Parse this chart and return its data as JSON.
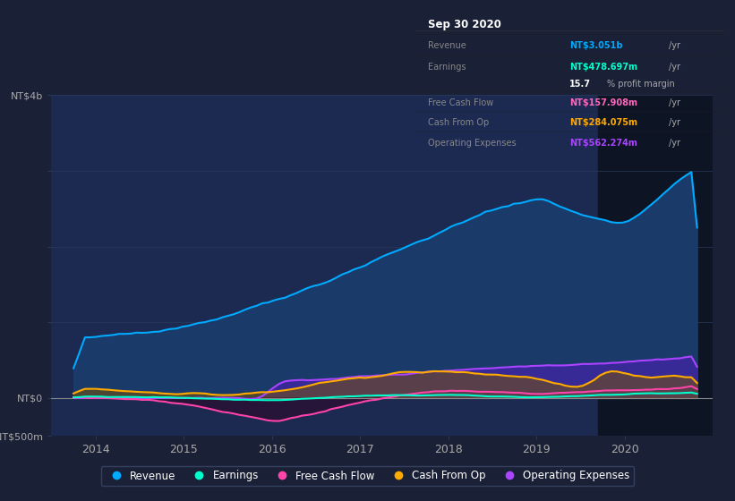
{
  "bg_color": "#1a2035",
  "plot_bg_color": "#1c2951",
  "axis_label_color": "#aaaaaa",
  "grid_color": "#2a3a5a",
  "zero_line_color": "#888888",
  "ylim": [
    -500,
    4000
  ],
  "xlim": [
    2013.5,
    2021.0
  ],
  "xtick_years": [
    2014,
    2015,
    2016,
    2017,
    2018,
    2019,
    2020
  ],
  "legend_items": [
    {
      "label": "Revenue",
      "color": "#00aaff"
    },
    {
      "label": "Earnings",
      "color": "#00ffcc"
    },
    {
      "label": "Free Cash Flow",
      "color": "#ff44aa"
    },
    {
      "label": "Cash From Op",
      "color": "#ffaa00"
    },
    {
      "label": "Operating Expenses",
      "color": "#aa44ff"
    }
  ],
  "revenue_color": "#00aaff",
  "earnings_color": "#00ffcc",
  "fcf_color": "#ff44aa",
  "cashfromop_color": "#ffaa00",
  "opex_color": "#aa44ff",
  "highlight_start": 2019.7,
  "highlight_end": 2021.0,
  "tooltip": {
    "date": "Sep 30 2020",
    "revenue_val": "NT$3.051b /yr",
    "earnings_val": "NT$478.697m /yr",
    "profit_margin": "15.7% profit margin",
    "fcf_val": "NT$157.908m /yr",
    "cashop_val": "NT$284.075m /yr",
    "opex_val": "NT$562.274m /yr",
    "revenue_color": "#00aaff",
    "earnings_color": "#00ffcc",
    "fcf_color": "#ff66bb",
    "cashop_color": "#ffaa00",
    "opex_color": "#aa44ff"
  }
}
